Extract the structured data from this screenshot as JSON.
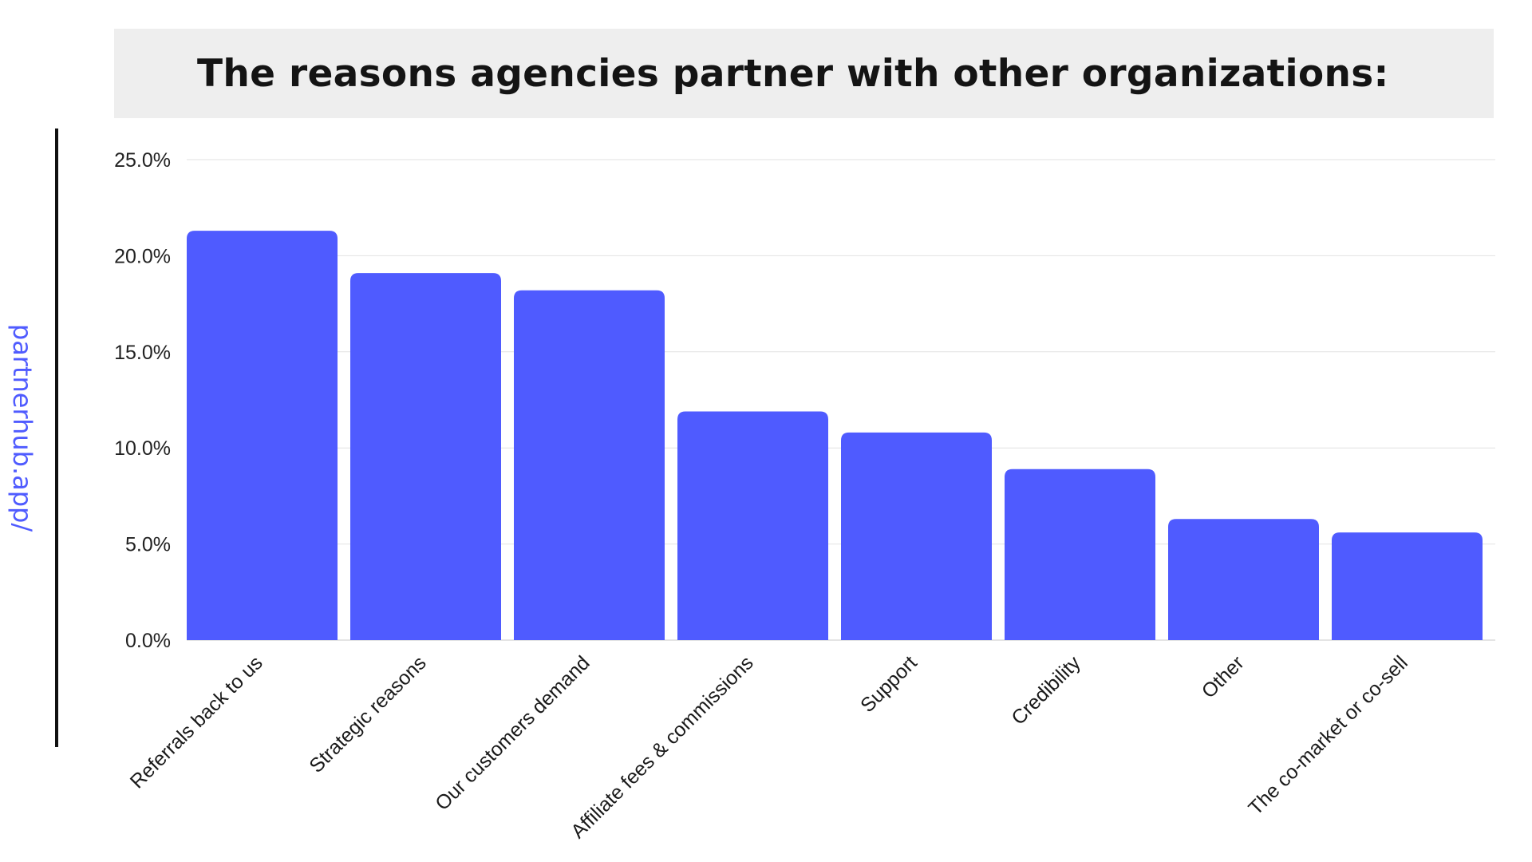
{
  "header": {
    "title": "The reasons agencies partner with other organizations:"
  },
  "watermark": {
    "text": "partnerhub.app/"
  },
  "colors": {
    "bar": "#4f5bff",
    "banner": "#eeeeee",
    "watermark": "#4f5bff"
  },
  "chart_data": {
    "type": "bar",
    "title": "The reasons agencies partner with other organizations:",
    "categories": [
      "Referrals back to us",
      "Strategic reasons",
      "Our customers demand",
      "Affiliate fees & commissions",
      "Support",
      "Credibility",
      "Other",
      "The co-market or co-sell"
    ],
    "values": [
      21.3,
      19.1,
      18.2,
      11.9,
      10.8,
      8.9,
      6.3,
      5.6
    ],
    "ylim": [
      0,
      25
    ],
    "yticks": [
      "0.0%",
      "5.0%",
      "10.0%",
      "15.0%",
      "20.0%",
      "25.0%"
    ],
    "ytick_values": [
      0,
      5,
      10,
      15,
      20,
      25
    ],
    "grid": true,
    "legend": "none",
    "xlabel": "",
    "ylabel": ""
  }
}
